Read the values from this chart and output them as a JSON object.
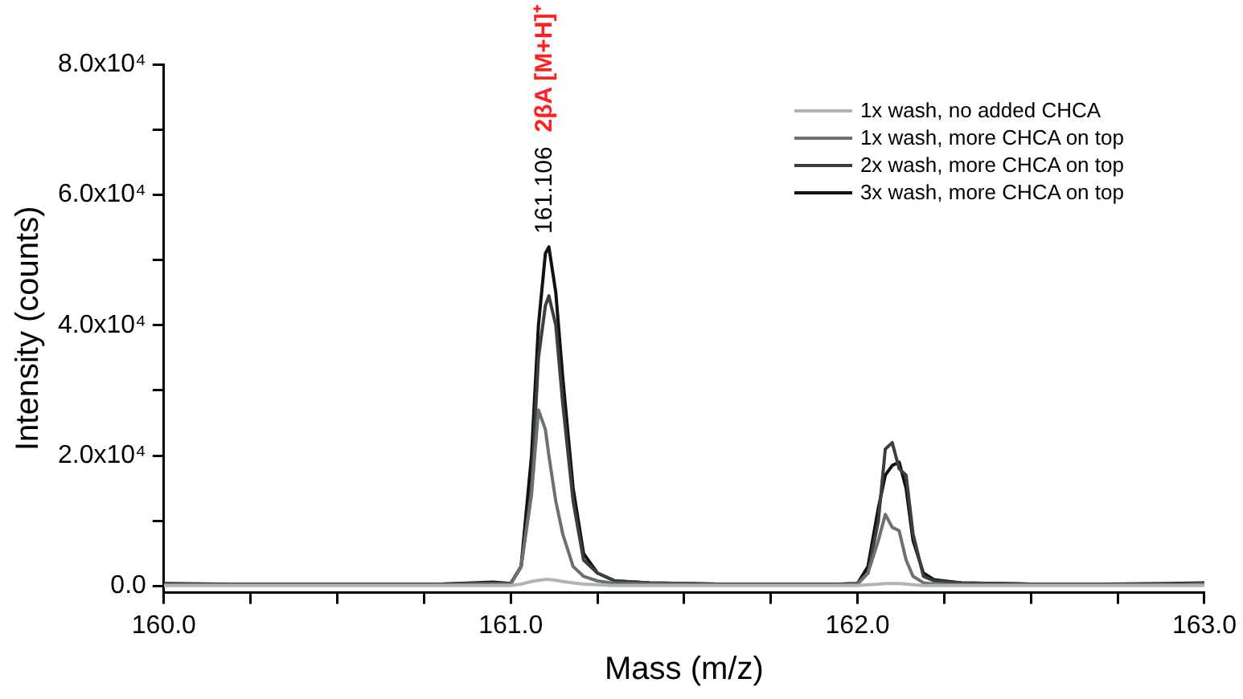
{
  "chart_data": {
    "type": "line",
    "xlabel": "Mass (m/z)",
    "ylabel": "Intensity (counts)",
    "x": [
      160.0,
      160.2,
      160.4,
      160.6,
      160.8,
      160.95,
      161.0,
      161.03,
      161.06,
      161.08,
      161.1,
      161.11,
      161.13,
      161.15,
      161.18,
      161.21,
      161.25,
      161.3,
      161.4,
      161.6,
      161.8,
      161.95,
      162.0,
      162.03,
      162.06,
      162.08,
      162.1,
      162.12,
      162.14,
      162.16,
      162.19,
      162.22,
      162.3,
      162.5,
      162.7,
      162.9,
      163.0
    ],
    "series": [
      {
        "name": "1x wash, no added CHCA",
        "color": "#b0b4b2",
        "values": [
          100,
          100,
          100,
          100,
          100,
          100,
          100,
          300,
          700,
          900,
          1000,
          1000,
          900,
          700,
          500,
          300,
          200,
          100,
          100,
          100,
          100,
          100,
          100,
          200,
          300,
          400,
          400,
          400,
          300,
          200,
          100,
          100,
          100,
          100,
          100,
          100,
          100
        ]
      },
      {
        "name": "1x wash, more CHCA on top",
        "color": "#6b716f",
        "values": [
          200,
          200,
          200,
          200,
          200,
          300,
          300,
          3000,
          14000,
          27000,
          24000,
          20000,
          13000,
          8000,
          3000,
          1500,
          800,
          400,
          300,
          200,
          200,
          200,
          300,
          2000,
          7000,
          11000,
          9000,
          8500,
          4000,
          1500,
          500,
          300,
          200,
          200,
          200,
          200,
          300
        ]
      },
      {
        "name": "2x wash, more CHCA on top",
        "color": "#3b3f3e",
        "values": [
          300,
          300,
          300,
          300,
          300,
          500,
          400,
          3000,
          15000,
          35000,
          43000,
          44500,
          40000,
          28000,
          13000,
          4000,
          2000,
          800,
          500,
          300,
          300,
          300,
          400,
          2000,
          10000,
          21000,
          22000,
          18000,
          17000,
          8000,
          1500,
          800,
          500,
          300,
          300,
          300,
          400
        ]
      },
      {
        "name": "3x wash, more CHCA on top",
        "color": "#111111",
        "values": [
          400,
          300,
          300,
          300,
          300,
          600,
          400,
          3000,
          20000,
          40000,
          51000,
          52000,
          45000,
          32000,
          15000,
          5000,
          2000,
          800,
          500,
          300,
          300,
          300,
          400,
          3000,
          12000,
          17000,
          18500,
          19000,
          15000,
          7000,
          2000,
          1000,
          500,
          300,
          300,
          400,
          500
        ]
      }
    ],
    "xlim": [
      160.0,
      163.0
    ],
    "xticks": [
      {
        "value": 160.0,
        "label": "160.0"
      },
      {
        "value": 160.25,
        "label": null
      },
      {
        "value": 160.5,
        "label": null
      },
      {
        "value": 160.75,
        "label": null
      },
      {
        "value": 161.0,
        "label": "161.0"
      },
      {
        "value": 161.25,
        "label": null
      },
      {
        "value": 161.5,
        "label": null
      },
      {
        "value": 161.75,
        "label": null
      },
      {
        "value": 162.0,
        "label": "162.0"
      },
      {
        "value": 162.25,
        "label": null
      },
      {
        "value": 162.5,
        "label": null
      },
      {
        "value": 162.75,
        "label": null
      },
      {
        "value": 163.0,
        "label": "163.0"
      }
    ],
    "ylim": [
      -1000,
      80000
    ],
    "yticks": [
      {
        "value": 0,
        "label": "0.0"
      },
      {
        "value": 10000,
        "label": null
      },
      {
        "value": 20000,
        "label": "2.0x10⁴"
      },
      {
        "value": 30000,
        "label": null
      },
      {
        "value": 40000,
        "label": "4.0x10⁴"
      },
      {
        "value": 50000,
        "label": null
      },
      {
        "value": 60000,
        "label": "6.0x10⁴"
      },
      {
        "value": 70000,
        "label": null
      },
      {
        "value": 80000,
        "label": "8.0x10⁴"
      }
    ],
    "annotations": [
      {
        "text": "161.106",
        "x": 161.106,
        "y": 52000
      },
      "2βA [M+H]⁺"
    ],
    "legend": "top right",
    "grid": false,
    "marker": "none",
    "line_style": "solid"
  }
}
